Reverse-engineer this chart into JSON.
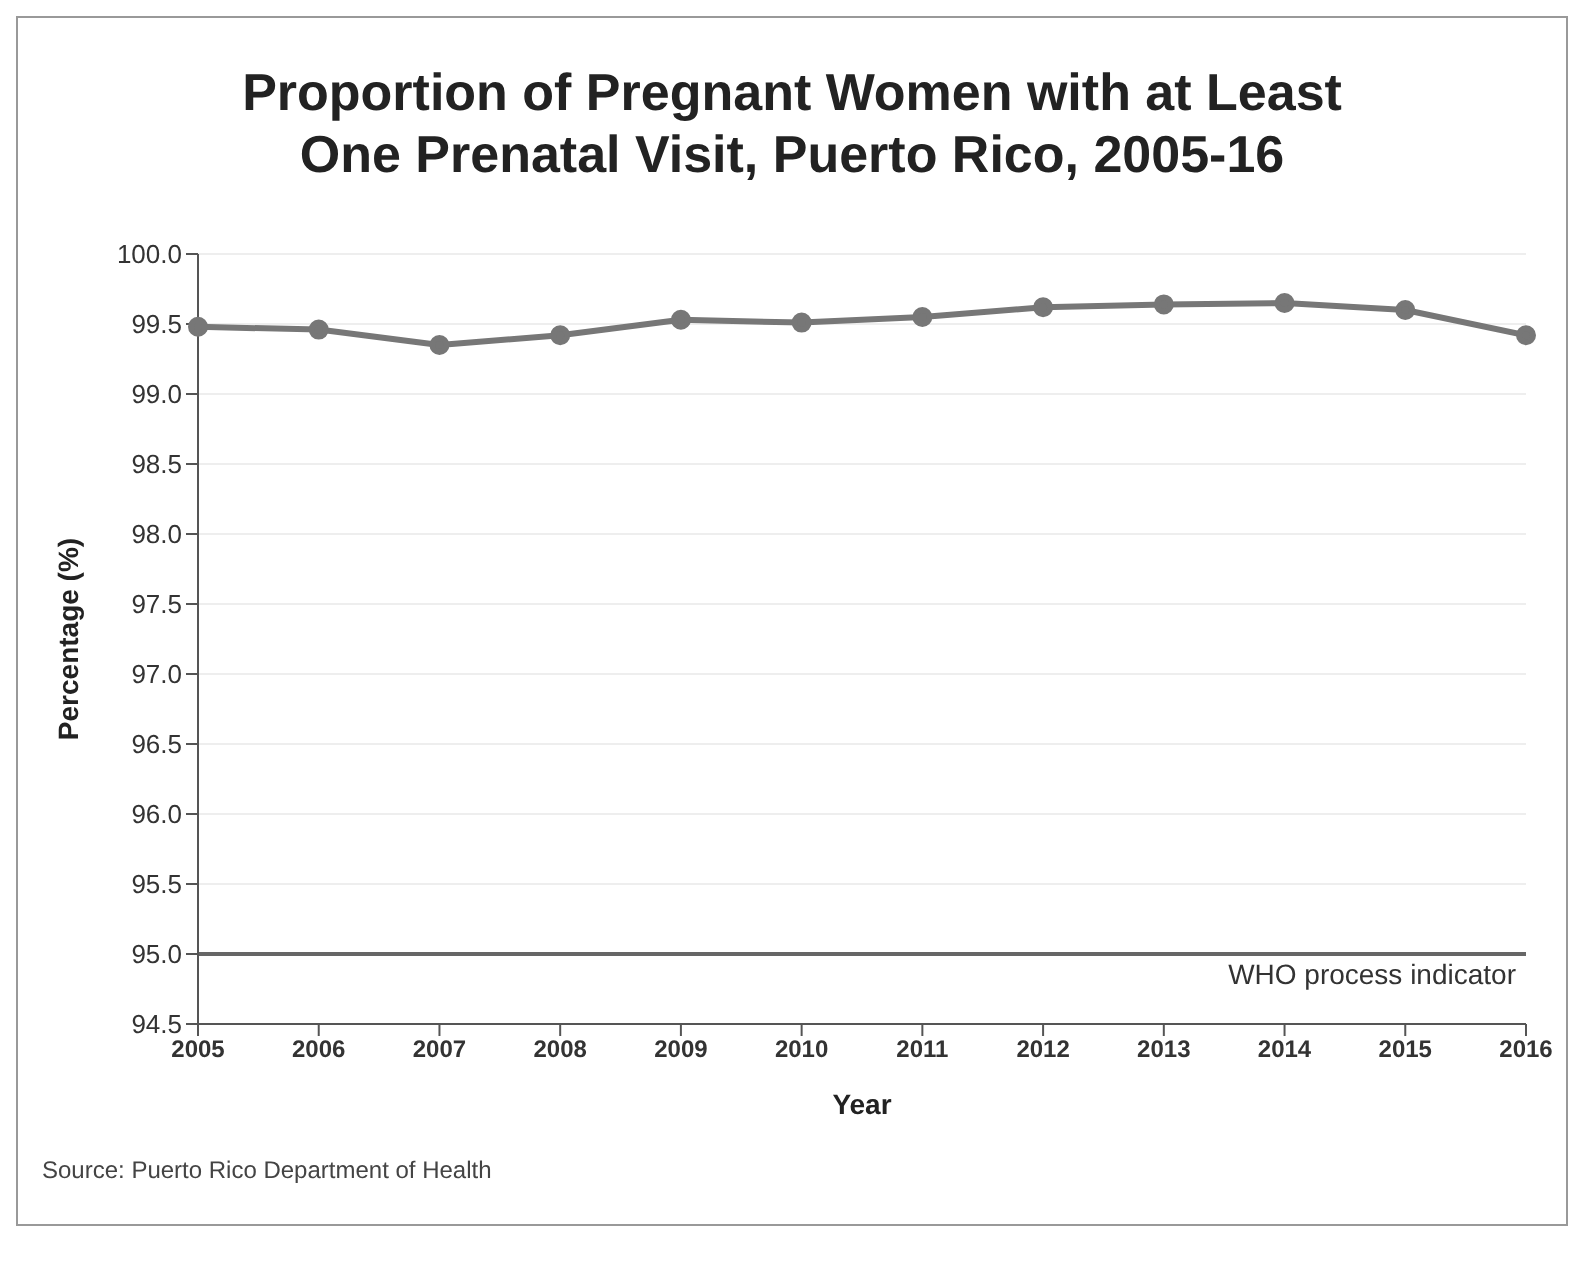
{
  "chart_data": {
    "type": "line",
    "title": "Proportion of Pregnant Women with at Least One Prenatal Visit, Puerto Rico, 2005-16",
    "xlabel": "Year",
    "ylabel": "Percentage (%)",
    "categories": [
      "2005",
      "2006",
      "2007",
      "2008",
      "2009",
      "2010",
      "2011",
      "2012",
      "2013",
      "2014",
      "2015",
      "2016"
    ],
    "series": [
      {
        "color": "#777777",
        "values": [
          99.48,
          99.46,
          99.35,
          99.42,
          99.53,
          99.51,
          99.55,
          99.62,
          99.64,
          99.65,
          99.6,
          99.42
        ]
      }
    ],
    "ylim": [
      94.5,
      100
    ],
    "yticks": [
      {
        "value": 94.5,
        "label": "94.5"
      },
      {
        "value": 95,
        "label": "95.0"
      },
      {
        "value": 95.5,
        "label": "95.5"
      },
      {
        "value": 96,
        "label": "96.0"
      },
      {
        "value": 96.5,
        "label": "96.5"
      },
      {
        "value": 97,
        "label": "97.0"
      },
      {
        "value": 97.5,
        "label": "97.5"
      },
      {
        "value": 98,
        "label": "98.0"
      },
      {
        "value": 98.5,
        "label": "98.5"
      },
      {
        "value": 99,
        "label": "99.0"
      },
      {
        "value": 99.5,
        "label": "99.5"
      },
      {
        "value": 100,
        "label": "100.0"
      }
    ],
    "grid": "y",
    "marker": "circle",
    "line_style": "solid",
    "legend": false,
    "ref_lines": [
      {
        "axis": "y",
        "value": 95,
        "label": "WHO process indicator",
        "color": "#666666"
      }
    ],
    "annotations": [
      "Source: Puerto Rico Department of Health"
    ]
  }
}
